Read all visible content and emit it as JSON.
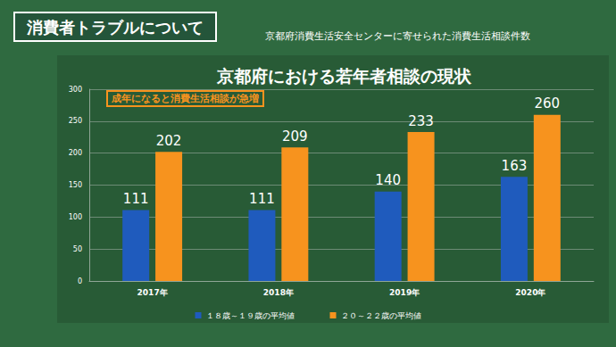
{
  "header": {
    "title": "消費者トラブルについて"
  },
  "chart_data": {
    "type": "bar",
    "title": "京都府における若年者相談の現状",
    "subtitle": "京都府消費生活安全センターに寄せられた消費生活相談件数",
    "annotations": [
      "成年になると消費生活相談が急増"
    ],
    "categories": [
      "2017年",
      "2018年",
      "2019年",
      "2020年"
    ],
    "series": [
      {
        "name": "１８歳～１９歳の平均値",
        "color": "#1f5bbd",
        "values": [
          111,
          111,
          140,
          163
        ]
      },
      {
        "name": "２０～２２歳の平均値",
        "color": "#f7931e",
        "values": [
          202,
          209,
          233,
          260
        ]
      }
    ],
    "ylim": [
      0,
      300
    ],
    "yticks": [
      0,
      50,
      100,
      150,
      200,
      250,
      300
    ],
    "grid": true,
    "legend": "bottom",
    "data_labels": true
  }
}
